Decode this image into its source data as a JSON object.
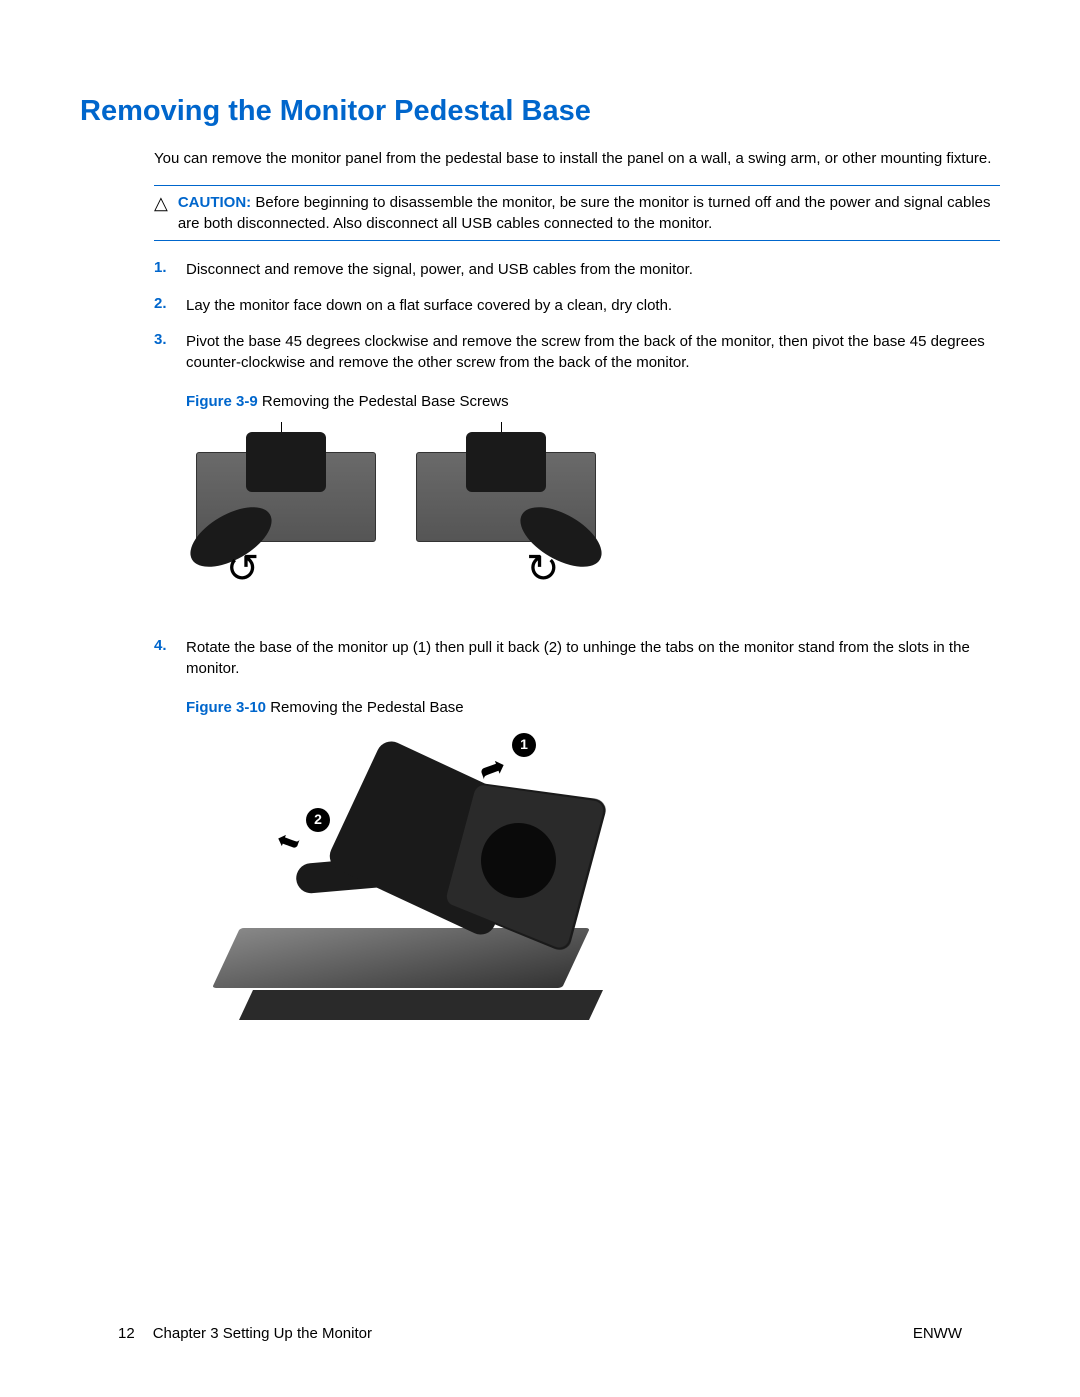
{
  "title": "Removing the Monitor Pedestal Base",
  "intro": "You can remove the monitor panel from the pedestal base to install the panel on a wall, a swing arm, or other mounting fixture.",
  "caution": {
    "label": "CAUTION:",
    "text": "Before beginning to disassemble the monitor, be sure the monitor is turned off and the power and signal cables are both disconnected. Also disconnect all USB cables connected to the monitor."
  },
  "steps": [
    {
      "num": "1.",
      "text": "Disconnect and remove the signal, power, and USB cables from the monitor."
    },
    {
      "num": "2.",
      "text": "Lay the monitor face down on a flat surface covered by a clean, dry cloth."
    },
    {
      "num": "3.",
      "text": "Pivot the base 45 degrees clockwise and remove the screw from the back of the monitor, then pivot the base 45 degrees counter-clockwise and remove the other screw from the back of the monitor."
    },
    {
      "num": "4.",
      "text": "Rotate the base of the monitor up (1) then pull it back (2) to unhinge the tabs on the monitor stand from the slots in the monitor."
    }
  ],
  "figures": {
    "fig9": {
      "label": "Figure 3-9",
      "caption": " Removing the Pedestal Base Screws"
    },
    "fig10": {
      "label": "Figure 3-10",
      "caption": " Removing the Pedestal Base",
      "callout1": "1",
      "callout2": "2"
    }
  },
  "footer": {
    "pageNum": "12",
    "chapter": "Chapter 3   Setting Up the Monitor",
    "lang": "ENWW"
  },
  "colors": {
    "accent_blue": "#0066cc",
    "text_black": "#000000",
    "background": "#ffffff",
    "monitor_gray": "#555555",
    "stand_black": "#1a1a1a"
  }
}
